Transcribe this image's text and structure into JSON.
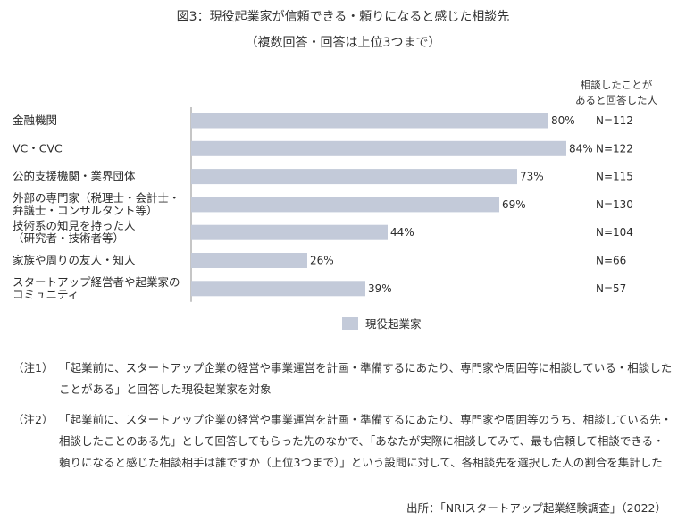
{
  "title_line1": "図3：現役起業家が信頼できる・頼りになると感じた相談先",
  "title_line2": "（複数回答・回答は上位3つまで）",
  "n_header_line1": "相談したことが",
  "n_header_line2": "あると回答した人",
  "legend_label": "現役起業家",
  "notes": [
    {
      "marker": "（注1）",
      "text": "「起業前に、スタートアップ企業の経営や事業運営を計画・準備するにあたり、専門家や周囲等に相談している・相談したことがある」と回答した現役起業家を対象"
    },
    {
      "marker": "（注2）",
      "text": "「起業前に、スタートアップ企業の経営や事業運営を計画・準備するにあたり、専門家や周囲等のうち、相談している先・相談したことのある先」として回答してもらった先のなかで、「あなたが実際に相談してみて、最も信頼して相談できる・頼りになると感じた相談相手は誰ですか（上位3つまで）」という設問に対して、各相談先を選択した人の割合を集計した"
    }
  ],
  "source": "出所：「NRIスタートアップ起業経験調査」（2022）",
  "colors": {
    "bar": "#c3cad9"
  },
  "chart_data": {
    "type": "bar",
    "orientation": "horizontal",
    "categories": [
      [
        "金融機関"
      ],
      [
        "VC・CVC"
      ],
      [
        "公的支援機関・業界団体"
      ],
      [
        "外部の専門家（税理士・会計士・",
        "弁護士・コンサルタント等）"
      ],
      [
        "技術系の知見を持った人",
        "（研究者・技術者等）"
      ],
      [
        "家族や周りの友人・知人"
      ],
      [
        "スタートアップ経営者や起業家の",
        "コミュニティ"
      ]
    ],
    "series": [
      {
        "name": "現役起業家",
        "values": [
          80,
          84,
          73,
          69,
          44,
          26,
          39
        ]
      }
    ],
    "value_labels": [
      "80%",
      "84%",
      "73%",
      "69%",
      "44%",
      "26%",
      "39%"
    ],
    "n_labels": [
      "N=112",
      "N=122",
      "N=115",
      "N=130",
      "N=104",
      "N=66",
      "N=57"
    ],
    "xlim": [
      0,
      100
    ],
    "grid": false,
    "legend": "bottom"
  }
}
